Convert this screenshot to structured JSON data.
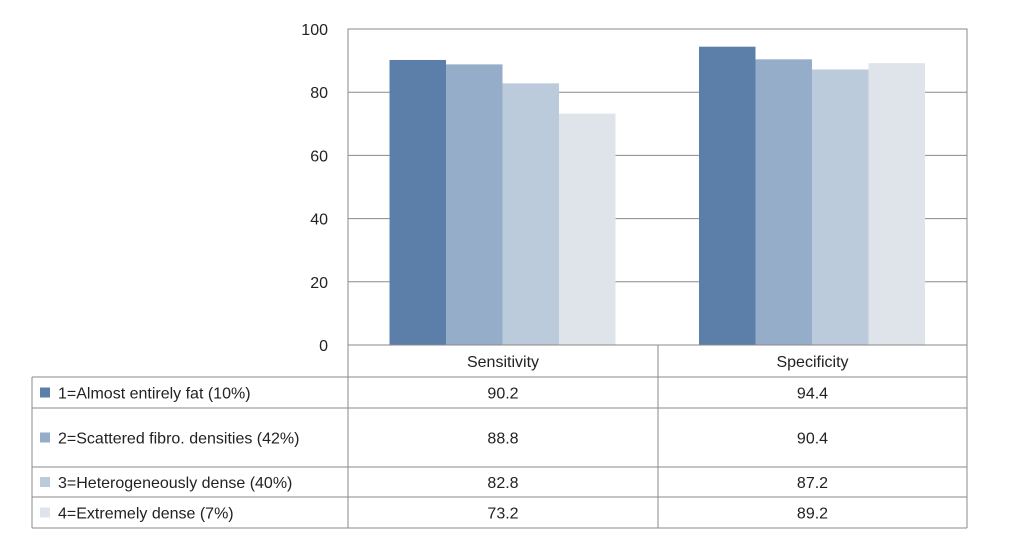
{
  "chart_data": {
    "type": "bar",
    "categories": [
      "Sensitivity",
      "Specificity"
    ],
    "series": [
      {
        "name": "1=Almost entirely fat (10%)",
        "color": "#5b7fa8",
        "values": [
          90.2,
          94.4
        ]
      },
      {
        "name": "2=Scattered fibro. densities (42%)",
        "color": "#95adc8",
        "values": [
          88.8,
          90.4
        ]
      },
      {
        "name": "3=Heterogeneously dense (40%)",
        "color": "#bccbdc",
        "values": [
          82.8,
          87.2
        ]
      },
      {
        "name": "4=Extremely dense (7%)",
        "color": "#dfe4ea",
        "values": [
          73.2,
          89.2
        ]
      }
    ],
    "yticks": [
      0,
      20,
      40,
      60,
      80,
      100
    ],
    "ylim": [
      0,
      100
    ],
    "grid": true,
    "legend": "data-table-below"
  }
}
